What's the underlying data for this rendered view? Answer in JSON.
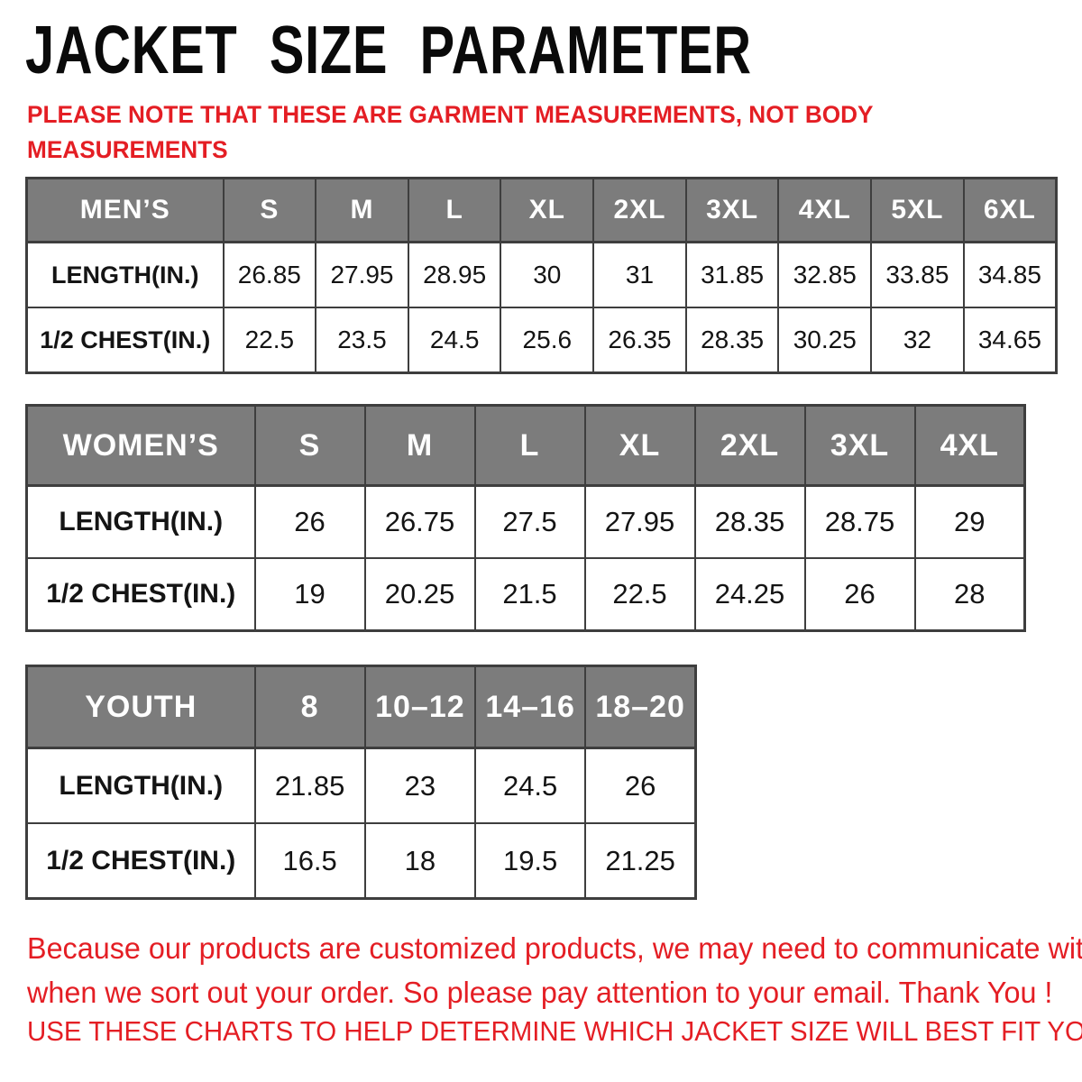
{
  "page": {
    "title": "JACKET SIZE PARAMETER"
  },
  "notes": {
    "subtitle_lines": [
      "PLEASE NOTE THAT THESE ARE GARMENT MEASUREMENTS, NOT BODY",
      "MEASUREMENTS"
    ],
    "footer_lines": [
      "Because our products are customized products, we may need to communicate with you",
      "when we sort out your order. So please pay attention to your email. Thank You !"
    ],
    "usage_line": "USE THESE CHARTS TO HELP DETERMINE WHICH JACKET SIZE WILL BEST FIT YOU."
  },
  "colors": {
    "accent_red": "#e41e24",
    "table_header_bg": "#7c7c7c",
    "table_header_text": "#ffffff",
    "table_border": "#3e3e3e",
    "title_text": "#0a0a0a"
  },
  "tables": [
    {
      "id": "mens",
      "header": [
        "MEN’S",
        "S",
        "M",
        "L",
        "XL",
        "2XL",
        "3XL",
        "4XL",
        "5XL",
        "6XL"
      ],
      "rows": [
        {
          "label": "LENGTH(IN.)",
          "values": [
            "26.85",
            "27.95",
            "28.95",
            "30",
            "31",
            "31.85",
            "32.85",
            "33.85",
            "34.85"
          ]
        },
        {
          "label": "1/2 CHEST(IN.)",
          "values": [
            "22.5",
            "23.5",
            "24.5",
            "25.6",
            "26.35",
            "28.35",
            "30.25",
            "32",
            "34.65"
          ]
        }
      ]
    },
    {
      "id": "womens",
      "header": [
        "WOMEN’S",
        "S",
        "M",
        "L",
        "XL",
        "2XL",
        "3XL",
        "4XL"
      ],
      "rows": [
        {
          "label": "LENGTH(IN.)",
          "values": [
            "26",
            "26.75",
            "27.5",
            "27.95",
            "28.35",
            "28.75",
            "29"
          ]
        },
        {
          "label": "1/2 CHEST(IN.)",
          "values": [
            "19",
            "20.25",
            "21.5",
            "22.5",
            "24.25",
            "26",
            "28"
          ]
        }
      ]
    },
    {
      "id": "youth",
      "header": [
        "YOUTH",
        "8",
        "10–12",
        "14–16",
        "18–20"
      ],
      "rows": [
        {
          "label": "LENGTH(IN.)",
          "values": [
            "21.85",
            "23",
            "24.5",
            "26"
          ]
        },
        {
          "label": "1/2 CHEST(IN.)",
          "values": [
            "16.5",
            "18",
            "19.5",
            "21.25"
          ]
        }
      ]
    }
  ],
  "chart_data": [
    {
      "type": "table",
      "title": "MEN’S",
      "columns": [
        "S",
        "M",
        "L",
        "XL",
        "2XL",
        "3XL",
        "4XL",
        "5XL",
        "6XL"
      ],
      "rows": [
        {
          "label": "LENGTH(IN.)",
          "values": [
            26.85,
            27.95,
            28.95,
            30,
            31,
            31.85,
            32.85,
            33.85,
            34.85
          ]
        },
        {
          "label": "1/2 CHEST(IN.)",
          "values": [
            22.5,
            23.5,
            24.5,
            25.6,
            26.35,
            28.35,
            30.25,
            32,
            34.65
          ]
        }
      ]
    },
    {
      "type": "table",
      "title": "WOMEN’S",
      "columns": [
        "S",
        "M",
        "L",
        "XL",
        "2XL",
        "3XL",
        "4XL"
      ],
      "rows": [
        {
          "label": "LENGTH(IN.)",
          "values": [
            26,
            26.75,
            27.5,
            27.95,
            28.35,
            28.75,
            29
          ]
        },
        {
          "label": "1/2 CHEST(IN.)",
          "values": [
            19,
            20.25,
            21.5,
            22.5,
            24.25,
            26,
            28
          ]
        }
      ]
    },
    {
      "type": "table",
      "title": "YOUTH",
      "columns": [
        "8",
        "10–12",
        "14–16",
        "18–20"
      ],
      "rows": [
        {
          "label": "LENGTH(IN.)",
          "values": [
            21.85,
            23,
            24.5,
            26
          ]
        },
        {
          "label": "1/2 CHEST(IN.)",
          "values": [
            16.5,
            18,
            19.5,
            21.25
          ]
        }
      ]
    }
  ]
}
